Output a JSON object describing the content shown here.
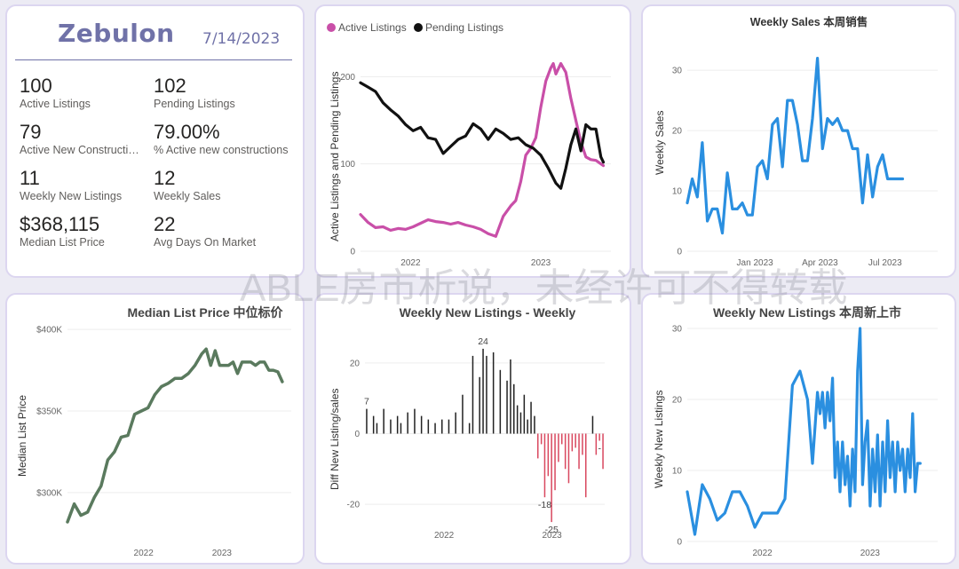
{
  "kpi": {
    "city": "Zebulon",
    "date": "7/14/2023",
    "items": [
      {
        "value": "100",
        "label": "Active Listings"
      },
      {
        "value": "102",
        "label": "Pending Listings"
      },
      {
        "value": "79",
        "label": "Active New Construction"
      },
      {
        "value": "79.00%",
        "label": "% Active new constructions"
      },
      {
        "value": "11",
        "label": "Weekly New Listings"
      },
      {
        "value": "12",
        "label": "Weekly Sales"
      },
      {
        "value": "$368,115",
        "label": "Median List Price"
      },
      {
        "value": "22",
        "label": "Avg Days On Market"
      }
    ]
  },
  "watermark": "ABLE房市析说，未经许可不得转载",
  "colors": {
    "active": "#c94fa8",
    "pending": "#111111",
    "blue": "#2a8fe0",
    "green": "#5a7a5e",
    "neg": "#d9485f",
    "pos": "#222222"
  },
  "chart_data": [
    {
      "id": "active_pending",
      "type": "line",
      "title": "",
      "xlabel": "",
      "ylabel": "Active Listings and Pending Listings",
      "legend": [
        "Active Listings",
        "Pending Listings"
      ],
      "x_ticks": [
        {
          "label": "2022",
          "x": 20
        },
        {
          "label": "2023",
          "x": 72
        }
      ],
      "y_ticks": [
        0,
        100,
        200
      ],
      "xlim": [
        0,
        100
      ],
      "ylim": [
        0,
        240
      ],
      "series": [
        {
          "name": "Active Listings",
          "color": "#c94fa8",
          "x": [
            0,
            3,
            6,
            9,
            12,
            15,
            18,
            21,
            24,
            27,
            30,
            33,
            36,
            39,
            42,
            45,
            48,
            51,
            54,
            57,
            60,
            62,
            64,
            66,
            68,
            70,
            72,
            74,
            76,
            77,
            78,
            80,
            82,
            84,
            86,
            88,
            90,
            92,
            94,
            97
          ],
          "y": [
            42,
            33,
            27,
            28,
            24,
            26,
            25,
            28,
            32,
            36,
            34,
            33,
            31,
            33,
            30,
            28,
            25,
            20,
            17,
            40,
            52,
            58,
            80,
            110,
            118,
            130,
            165,
            195,
            210,
            215,
            203,
            215,
            205,
            175,
            150,
            125,
            108,
            105,
            104,
            98
          ]
        },
        {
          "name": "Pending Listings",
          "color": "#111111",
          "x": [
            0,
            3,
            6,
            9,
            12,
            15,
            18,
            21,
            24,
            27,
            30,
            33,
            36,
            39,
            42,
            45,
            48,
            51,
            54,
            57,
            60,
            63,
            66,
            69,
            72,
            75,
            78,
            80,
            82,
            84,
            86,
            88,
            90,
            92,
            94,
            96,
            97
          ],
          "y": [
            193,
            188,
            183,
            170,
            162,
            155,
            145,
            138,
            142,
            130,
            128,
            112,
            120,
            128,
            132,
            146,
            140,
            128,
            140,
            135,
            128,
            130,
            122,
            118,
            110,
            95,
            78,
            72,
            95,
            122,
            140,
            115,
            145,
            140,
            140,
            108,
            102
          ]
        }
      ]
    },
    {
      "id": "weekly_sales",
      "type": "line",
      "title": "Weekly Sales 本周销售",
      "xlabel": "",
      "ylabel": "Weekly Sales",
      "x_ticks": [
        {
          "label": "Jan 2023",
          "x": 27
        },
        {
          "label": "Apr 2023",
          "x": 53
        },
        {
          "label": "Jul 2023",
          "x": 79
        }
      ],
      "y_ticks": [
        0,
        10,
        20,
        30
      ],
      "xlim": [
        0,
        100
      ],
      "ylim": [
        0,
        34
      ],
      "series": [
        {
          "name": "Weekly Sales",
          "color": "#2a8fe0",
          "x": [
            0,
            2,
            4,
            6,
            8,
            10,
            12,
            14,
            16,
            18,
            20,
            22,
            24,
            26,
            28,
            30,
            32,
            34,
            36,
            38,
            40,
            42,
            44,
            46,
            48,
            50,
            52,
            54,
            56,
            58,
            60,
            62,
            64,
            66,
            68,
            70,
            72,
            74,
            76,
            78,
            80,
            82,
            84,
            86
          ],
          "y": [
            8,
            12,
            9,
            18,
            5,
            7,
            7,
            3,
            13,
            7,
            7,
            8,
            6,
            6,
            14,
            15,
            12,
            21,
            22,
            14,
            25,
            25,
            21,
            15,
            15,
            22,
            32,
            17,
            22,
            21,
            22,
            20,
            20,
            17,
            17,
            8,
            16,
            9,
            14,
            16,
            12,
            12,
            12,
            12
          ]
        }
      ]
    },
    {
      "id": "median_list_price",
      "type": "line",
      "title": "Median List Price 中位标价",
      "xlabel": "",
      "ylabel": "Median List Price",
      "x_ticks": [
        {
          "label": "2022",
          "x": 34
        },
        {
          "label": "2023",
          "x": 69
        }
      ],
      "y_ticks": [
        {
          "label": "$300K",
          "v": 300000
        },
        {
          "label": "$350K",
          "v": 350000
        },
        {
          "label": "$400K",
          "v": 400000
        }
      ],
      "xlim": [
        0,
        100
      ],
      "ylim": [
        270000,
        405000
      ],
      "series": [
        {
          "name": "Median List Price",
          "color": "#5a7a5e",
          "x": [
            0,
            3,
            6,
            9,
            12,
            15,
            18,
            21,
            24,
            27,
            30,
            33,
            36,
            39,
            42,
            45,
            48,
            51,
            54,
            57,
            60,
            62,
            64,
            66,
            68,
            70,
            72,
            74,
            76,
            78,
            80,
            82,
            84,
            86,
            88,
            90,
            92,
            94,
            96
          ],
          "y": [
            282000,
            293000,
            286000,
            288000,
            297000,
            304000,
            320000,
            325000,
            334000,
            335000,
            348000,
            350000,
            352000,
            360000,
            365000,
            367000,
            370000,
            370000,
            373000,
            378000,
            385000,
            388000,
            378000,
            387000,
            378000,
            378000,
            378000,
            380000,
            373000,
            380000,
            380000,
            380000,
            378000,
            380000,
            380000,
            375000,
            375000,
            374000,
            368000
          ]
        }
      ]
    },
    {
      "id": "diff_new_listings_sales",
      "type": "bar",
      "title": "Weekly New Listings - Weekly",
      "xlabel": "",
      "ylabel": "Diff New Listing/sales",
      "x_ticks": [
        {
          "label": "2022",
          "x": 33
        },
        {
          "label": "2023",
          "x": 78
        }
      ],
      "y_ticks": [
        -20,
        0,
        20
      ],
      "ylim": [
        -28,
        28
      ],
      "annotations": [
        {
          "label": "7",
          "index": 0
        },
        {
          "label": "24",
          "index": 34
        },
        {
          "label": "-18",
          "index": 52
        },
        {
          "label": "-25",
          "index": 54
        },
        {
          "label": "-",
          "index": 68
        }
      ],
      "values": [
        7,
        0,
        5,
        3,
        0,
        7,
        0,
        4,
        0,
        5,
        3,
        0,
        6,
        0,
        7,
        0,
        5,
        0,
        4,
        0,
        3,
        0,
        4,
        0,
        4,
        0,
        6,
        0,
        11,
        0,
        3,
        22,
        0,
        16,
        24,
        22,
        0,
        23,
        0,
        18,
        0,
        15,
        21,
        14,
        8,
        6,
        11,
        4,
        9,
        5,
        -7,
        -3,
        -18,
        -12,
        -25,
        -16,
        -8,
        -3,
        -10,
        -14,
        -5,
        -4,
        -10,
        -6,
        -18,
        0,
        5,
        -6,
        -2,
        -10
      ],
      "values_signed": true
    },
    {
      "id": "weekly_new_listings",
      "type": "line",
      "title": "Weekly New Listings 本周新上市",
      "xlabel": "",
      "ylabel": "Weekly New Listings",
      "x_ticks": [
        {
          "label": "2022",
          "x": 30
        },
        {
          "label": "2023",
          "x": 73
        }
      ],
      "y_ticks": [
        0,
        10,
        20,
        30
      ],
      "xlim": [
        0,
        100
      ],
      "ylim": [
        0,
        31
      ],
      "series": [
        {
          "name": "Weekly New Listings",
          "color": "#2a8fe0",
          "x": [
            0,
            3,
            6,
            9,
            12,
            15,
            18,
            21,
            24,
            27,
            30,
            33,
            36,
            39,
            42,
            45,
            48,
            50,
            52,
            53,
            54,
            55,
            56,
            57,
            58,
            59,
            60,
            61,
            62,
            63,
            64,
            65,
            66,
            67,
            68,
            69,
            70,
            71,
            72,
            73,
            74,
            75,
            76,
            77,
            78,
            79,
            80,
            81,
            82,
            83,
            84,
            85,
            86,
            87,
            88,
            89,
            90,
            91,
            92,
            93
          ],
          "y": [
            7,
            1,
            8,
            6,
            3,
            4,
            7,
            7,
            5,
            2,
            4,
            4,
            4,
            6,
            22,
            24,
            20,
            11,
            21,
            18,
            21,
            16,
            21,
            17,
            23,
            9,
            14,
            7,
            14,
            8,
            12,
            5,
            13,
            7,
            24,
            30,
            8,
            14,
            17,
            5,
            13,
            7,
            15,
            5,
            14,
            7,
            17,
            9,
            14,
            7,
            14,
            10,
            13,
            7,
            13,
            9,
            18,
            7,
            11,
            11
          ]
        }
      ]
    }
  ]
}
